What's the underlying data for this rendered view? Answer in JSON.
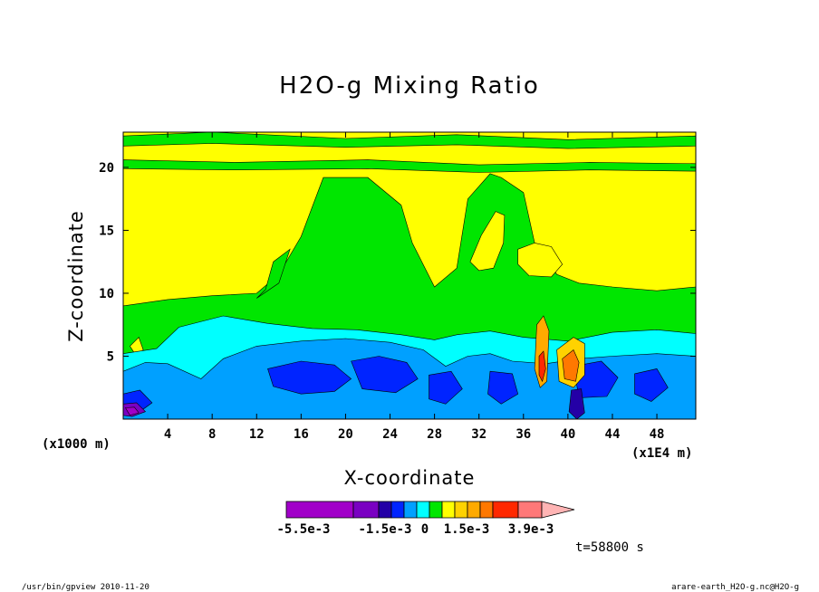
{
  "colors": {
    "levels": [
      "#a100c9",
      "#7a00c2",
      "#2400a6",
      "#0024ff",
      "#00a0ff",
      "#00ffff",
      "#00e600",
      "#ffff00",
      "#ffd200",
      "#ffaa00",
      "#ff7800",
      "#ff2800",
      "#ff7878",
      "#ffb4b4"
    ],
    "background": "#ffffff",
    "outline": "#000000"
  },
  "footer": {
    "left": "/usr/bin/gpview  2010-11-20",
    "right": "arare-earth_H2O-g.nc@H2O-g"
  },
  "chart_data": {
    "type": "heatmap",
    "title": "H2O-g Mixing Ratio",
    "xlabel": "X-coordinate",
    "ylabel": "Z-coordinate",
    "x_unit_left": "(x1000 m)",
    "x_unit_right": "(x1E4 m)",
    "xlim": [
      0,
      51.5
    ],
    "ylim": [
      0,
      22.8
    ],
    "x_ticks": [
      4,
      8,
      12,
      16,
      20,
      24,
      28,
      32,
      36,
      40,
      44,
      48
    ],
    "y_ticks": [
      5,
      10,
      15,
      20
    ],
    "grid": false,
    "colorbar": {
      "orientation": "horizontal",
      "position": "bottom",
      "labels": [
        "-5.5e-3",
        "-1.5e-3",
        "0",
        "1.5e-3",
        "3.9e-3"
      ],
      "extend_max": true
    },
    "annotation": "t=58800 s",
    "field_levels": {
      "description_levels": "index into colors.levels",
      "base_level": 7,
      "bands": [
        {
          "level": 6,
          "z_min": 6,
          "z_max": 12,
          "x_min": 0,
          "x_max": 51.5
        },
        {
          "level": 5,
          "z_min": 0,
          "z_max": 6,
          "x_min": 0,
          "x_max": 51.5
        },
        {
          "level": 4,
          "z_min": 0,
          "z_max": 5,
          "x_min": 0,
          "x_max": 51.5
        },
        {
          "level": 3,
          "z_min": 0,
          "z_max": 3.5,
          "x_min": 0,
          "x_max": 51.5
        }
      ]
    }
  }
}
